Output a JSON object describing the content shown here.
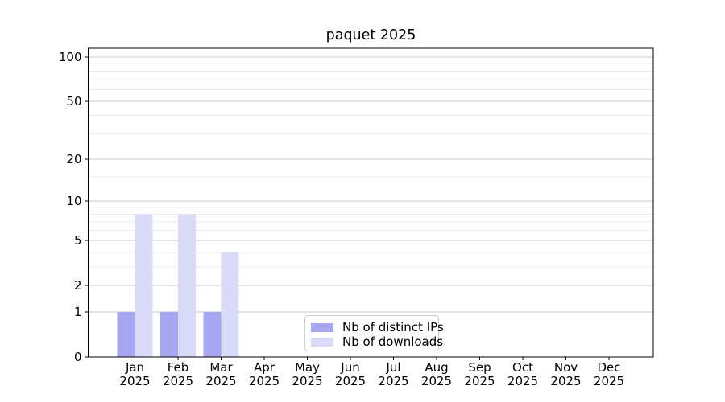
{
  "colors": {
    "background": "#ffffff",
    "axis": "#000000",
    "grid_major": "#c8c8c8",
    "grid_minor": "#eaeaea",
    "legend_border": "#cccccc",
    "distinct_ips": "#a6a6f2",
    "downloads": "#d9d9f8"
  },
  "chart_data": {
    "type": "bar",
    "title": "paquet 2025",
    "y_scale": "log10(1+v)",
    "ylim": [
      0,
      100
    ],
    "grid": true,
    "legend_position": "lower center",
    "categories": [
      "Jan 2025",
      "Feb 2025",
      "Mar 2025",
      "Apr 2025",
      "May 2025",
      "Jun 2025",
      "Jul 2025",
      "Aug 2025",
      "Sep 2025",
      "Oct 2025",
      "Nov 2025",
      "Dec 2025"
    ],
    "series": [
      {
        "name": "Nb of distinct IPs",
        "color": "#a6a6f2",
        "values": [
          1,
          1,
          1,
          0,
          0,
          0,
          0,
          0,
          0,
          0,
          0,
          0
        ]
      },
      {
        "name": "Nb of downloads",
        "color": "#d9d9f8",
        "values": [
          8,
          8,
          4,
          0,
          0,
          0,
          0,
          0,
          0,
          0,
          0,
          0
        ]
      }
    ],
    "y_major_ticks": [
      0,
      1,
      2,
      5,
      10,
      20,
      50,
      100
    ],
    "y_minor_ticks": [
      3,
      4,
      6,
      7,
      8,
      9,
      15,
      30,
      40,
      60,
      70,
      80,
      90
    ]
  }
}
